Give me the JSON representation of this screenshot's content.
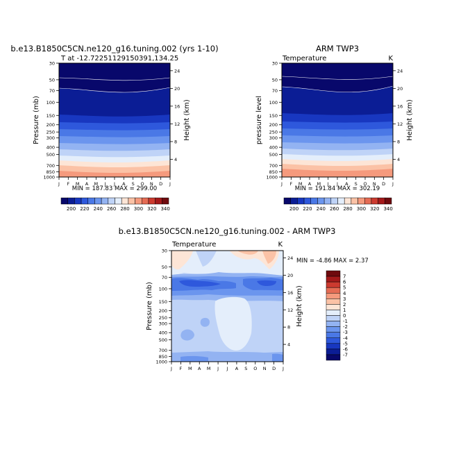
{
  "chart_data": [
    {
      "type": "heatmap",
      "title": "b.e13.B1850C5CN.ne120_g16.tuning.002 (yrs 1-10)",
      "subtitle": "T at -12.72251129150391,134.25",
      "ylabel": "Pressure (mb)",
      "y2label": "Height (km)",
      "x_ticks": [
        "J",
        "F",
        "M",
        "A",
        "M",
        "J",
        "J",
        "A",
        "S",
        "O",
        "N",
        "D",
        "J"
      ],
      "y_ticks": [
        "30",
        "50",
        "70",
        "100",
        "150",
        "200",
        "250",
        "300",
        "400",
        "500",
        "700",
        "850",
        "1000"
      ],
      "y2_ticks": [
        "24",
        "20",
        "16",
        "12",
        "8",
        "4"
      ],
      "stats": "MIN = 187.83   MAX = 299.00",
      "min": 187.83,
      "max": 299.0,
      "colorbar_labels": [
        "200",
        "220",
        "240",
        "260",
        "280",
        "300",
        "320",
        "340"
      ]
    },
    {
      "type": "heatmap",
      "title": "ARM TWP3",
      "left_label": "Temperature",
      "right_label": "K",
      "ylabel": "pressure level",
      "y2label": "Height (km)",
      "x_ticks": [
        "J",
        "F",
        "M",
        "A",
        "M",
        "J",
        "J",
        "A",
        "S",
        "O",
        "N",
        "D",
        "J"
      ],
      "y_ticks": [
        "30",
        "50",
        "70",
        "100",
        "150",
        "200",
        "250",
        "300",
        "400",
        "500",
        "700",
        "850",
        "1000"
      ],
      "y2_ticks": [
        "24",
        "20",
        "16",
        "12",
        "8",
        "4"
      ],
      "stats": "MIN = 191.84   MAX = 302.19",
      "min": 191.84,
      "max": 302.19,
      "colorbar_labels": [
        "200",
        "220",
        "240",
        "260",
        "280",
        "300",
        "320",
        "340"
      ]
    },
    {
      "type": "heatmap",
      "title": "b.e13.B1850C5CN.ne120_g16.tuning.002 - ARM TWP3",
      "left_label": "Temperature",
      "right_label": "K",
      "ylabel": "Pressure (mb)",
      "y2label": "Height (km)",
      "x_ticks": [
        "J",
        "F",
        "M",
        "A",
        "M",
        "J",
        "J",
        "A",
        "S",
        "O",
        "N",
        "D",
        "J"
      ],
      "y_ticks": [
        "30",
        "50",
        "70",
        "100",
        "150",
        "200",
        "250",
        "300",
        "400",
        "500",
        "700",
        "850",
        "1000"
      ],
      "y2_ticks": [
        "24",
        "20",
        "16",
        "12",
        "8",
        "4"
      ],
      "stats": "MIN =  -4.86  MAX =   2.37",
      "min": -4.86,
      "max": 2.37,
      "colorbar_labels": [
        "7",
        "6",
        "5",
        "4",
        "3",
        "2",
        "1",
        "0",
        "-1",
        "-2",
        "-3",
        "-4",
        "-5",
        "-6",
        "-7"
      ]
    }
  ],
  "colors": {
    "scale_temperature": [
      "#08086b",
      "#0b1d95",
      "#1837c0",
      "#2e58dc",
      "#4a78e6",
      "#6b95ee",
      "#93b3f2",
      "#bfd3f7",
      "#e4eefb",
      "#fde5d6",
      "#fbc2a6",
      "#f59a7d",
      "#e56c54",
      "#cc3a2f",
      "#a4191a",
      "#6f0a0e"
    ],
    "scale_difference": [
      "#08086b",
      "#0b1d95",
      "#1837c0",
      "#2e58dc",
      "#4a78e6",
      "#6b95ee",
      "#93b3f2",
      "#bfd3f7",
      "#e4eefb",
      "#fde5d6",
      "#fbc2a6",
      "#f59a7d",
      "#e56c54",
      "#cc3a2f",
      "#a4191a",
      "#6f0a0e"
    ]
  }
}
